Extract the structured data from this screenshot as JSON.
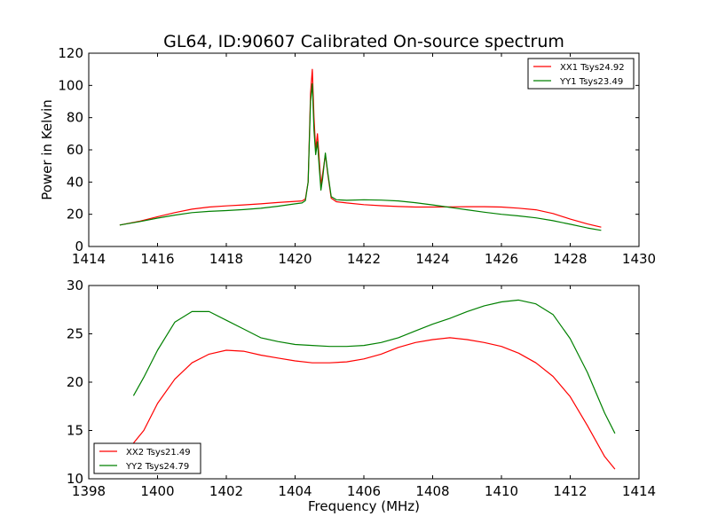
{
  "chart_data": [
    {
      "type": "line",
      "title": "GL64, ID:90607 Calibrated On-source spectrum",
      "xlabel": "",
      "ylabel": "Power in Kelvin",
      "xlim": [
        1414,
        1430
      ],
      "ylim": [
        0,
        120
      ],
      "xticks": [
        "1414",
        "1416",
        "1418",
        "1420",
        "1422",
        "1424",
        "1426",
        "1428",
        "1430"
      ],
      "yticks": [
        "0",
        "20",
        "40",
        "60",
        "80",
        "100",
        "120"
      ],
      "legend_position": "top-right",
      "series": [
        {
          "name": "XX1 Tsys24.92",
          "color": "#ff0000",
          "points": [
            [
              1414.9,
              13.3
            ],
            [
              1415.5,
              15.8
            ],
            [
              1416.0,
              18.5
            ],
            [
              1416.5,
              21.0
            ],
            [
              1417.0,
              23.2
            ],
            [
              1417.5,
              24.5
            ],
            [
              1418.0,
              25.2
            ],
            [
              1418.5,
              25.8
            ],
            [
              1419.0,
              26.5
            ],
            [
              1419.5,
              27.3
            ],
            [
              1420.0,
              28.0
            ],
            [
              1420.2,
              28.3
            ],
            [
              1420.3,
              29.5
            ],
            [
              1420.38,
              40
            ],
            [
              1420.45,
              95
            ],
            [
              1420.5,
              110
            ],
            [
              1420.55,
              80
            ],
            [
              1420.6,
              60
            ],
            [
              1420.65,
              70
            ],
            [
              1420.7,
              55
            ],
            [
              1420.75,
              38
            ],
            [
              1420.8,
              45
            ],
            [
              1420.88,
              57
            ],
            [
              1420.95,
              45
            ],
            [
              1421.05,
              30
            ],
            [
              1421.2,
              27.8
            ],
            [
              1421.5,
              27.0
            ],
            [
              1422.0,
              26.0
            ],
            [
              1422.5,
              25.3
            ],
            [
              1423.0,
              24.8
            ],
            [
              1423.5,
              24.5
            ],
            [
              1424.0,
              24.5
            ],
            [
              1424.5,
              24.6
            ],
            [
              1425.0,
              24.7
            ],
            [
              1425.5,
              24.7
            ],
            [
              1426.0,
              24.5
            ],
            [
              1426.5,
              23.8
            ],
            [
              1427.0,
              22.8
            ],
            [
              1427.5,
              20.5
            ],
            [
              1428.0,
              17.0
            ],
            [
              1428.5,
              14.0
            ],
            [
              1428.9,
              12.0
            ]
          ]
        },
        {
          "name": "YY1 Tsys23.49",
          "color": "#008000",
          "points": [
            [
              1414.9,
              13.3
            ],
            [
              1415.5,
              15.5
            ],
            [
              1416.0,
              17.6
            ],
            [
              1416.5,
              19.5
            ],
            [
              1417.0,
              21.0
            ],
            [
              1417.5,
              21.8
            ],
            [
              1418.0,
              22.3
            ],
            [
              1418.5,
              22.9
            ],
            [
              1419.0,
              23.7
            ],
            [
              1419.5,
              25.0
            ],
            [
              1420.0,
              26.5
            ],
            [
              1420.2,
              27.0
            ],
            [
              1420.3,
              28.5
            ],
            [
              1420.38,
              40
            ],
            [
              1420.45,
              90
            ],
            [
              1420.5,
              101
            ],
            [
              1420.55,
              72
            ],
            [
              1420.6,
              57
            ],
            [
              1420.65,
              65
            ],
            [
              1420.7,
              50
            ],
            [
              1420.75,
              35
            ],
            [
              1420.8,
              42
            ],
            [
              1420.88,
              58
            ],
            [
              1420.95,
              46
            ],
            [
              1421.05,
              31
            ],
            [
              1421.2,
              29.0
            ],
            [
              1421.5,
              28.7
            ],
            [
              1422.0,
              29.0
            ],
            [
              1422.5,
              28.8
            ],
            [
              1423.0,
              28.3
            ],
            [
              1423.5,
              27.2
            ],
            [
              1424.0,
              25.8
            ],
            [
              1424.5,
              24.3
            ],
            [
              1425.0,
              22.8
            ],
            [
              1425.5,
              21.3
            ],
            [
              1426.0,
              20.0
            ],
            [
              1426.5,
              19.0
            ],
            [
              1427.0,
              17.8
            ],
            [
              1427.5,
              16.0
            ],
            [
              1428.0,
              13.8
            ],
            [
              1428.5,
              11.5
            ],
            [
              1428.9,
              10.0
            ]
          ]
        }
      ]
    },
    {
      "type": "line",
      "title": "",
      "xlabel": "Frequency (MHz)",
      "ylabel": "",
      "xlim": [
        1398,
        1414
      ],
      "ylim": [
        10,
        30
      ],
      "xticks": [
        "1398",
        "1400",
        "1402",
        "1404",
        "1406",
        "1408",
        "1410",
        "1412",
        "1414"
      ],
      "yticks": [
        "10",
        "15",
        "20",
        "25",
        "30"
      ],
      "legend_position": "bottom-left",
      "series": [
        {
          "name": "XX2 Tsys21.49",
          "color": "#ff0000",
          "points": [
            [
              1399.3,
              13.7
            ],
            [
              1399.6,
              15.0
            ],
            [
              1400.0,
              17.8
            ],
            [
              1400.5,
              20.3
            ],
            [
              1401.0,
              22.0
            ],
            [
              1401.5,
              22.9
            ],
            [
              1402.0,
              23.3
            ],
            [
              1402.5,
              23.2
            ],
            [
              1403.0,
              22.8
            ],
            [
              1403.5,
              22.5
            ],
            [
              1404.0,
              22.2
            ],
            [
              1404.5,
              22.0
            ],
            [
              1405.0,
              22.0
            ],
            [
              1405.5,
              22.1
            ],
            [
              1406.0,
              22.4
            ],
            [
              1406.5,
              22.9
            ],
            [
              1407.0,
              23.6
            ],
            [
              1407.5,
              24.1
            ],
            [
              1408.0,
              24.4
            ],
            [
              1408.5,
              24.6
            ],
            [
              1409.0,
              24.4
            ],
            [
              1409.5,
              24.1
            ],
            [
              1410.0,
              23.7
            ],
            [
              1410.5,
              23.0
            ],
            [
              1411.0,
              22.0
            ],
            [
              1411.5,
              20.6
            ],
            [
              1412.0,
              18.5
            ],
            [
              1412.5,
              15.5
            ],
            [
              1413.0,
              12.3
            ],
            [
              1413.3,
              11.0
            ]
          ]
        },
        {
          "name": "YY2 Tsys24.79",
          "color": "#008000",
          "points": [
            [
              1399.3,
              18.6
            ],
            [
              1399.6,
              20.5
            ],
            [
              1400.0,
              23.3
            ],
            [
              1400.5,
              26.2
            ],
            [
              1401.0,
              27.3
            ],
            [
              1401.5,
              27.3
            ],
            [
              1402.0,
              26.4
            ],
            [
              1402.5,
              25.5
            ],
            [
              1403.0,
              24.6
            ],
            [
              1403.5,
              24.2
            ],
            [
              1404.0,
              23.9
            ],
            [
              1404.5,
              23.8
            ],
            [
              1405.0,
              23.7
            ],
            [
              1405.5,
              23.7
            ],
            [
              1406.0,
              23.8
            ],
            [
              1406.5,
              24.1
            ],
            [
              1407.0,
              24.6
            ],
            [
              1407.5,
              25.3
            ],
            [
              1408.0,
              26.0
            ],
            [
              1408.5,
              26.6
            ],
            [
              1409.0,
              27.3
            ],
            [
              1409.5,
              27.9
            ],
            [
              1410.0,
              28.3
            ],
            [
              1410.5,
              28.5
            ],
            [
              1411.0,
              28.1
            ],
            [
              1411.5,
              27.0
            ],
            [
              1412.0,
              24.5
            ],
            [
              1412.5,
              21.0
            ],
            [
              1413.0,
              16.8
            ],
            [
              1413.3,
              14.7
            ]
          ]
        }
      ]
    }
  ]
}
